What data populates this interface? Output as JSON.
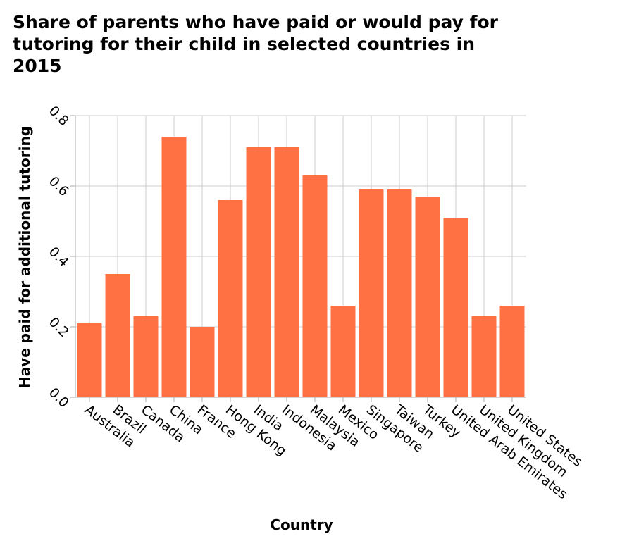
{
  "chart_data": {
    "type": "bar",
    "title": "Share of parents who have paid or would pay for tutoring for their child in selected countries in 2015",
    "xlabel": "Country",
    "ylabel": "Have paid for additional tutoring",
    "ylim": [
      0,
      0.8
    ],
    "yticks": [
      "0.0",
      "0.2",
      "0.4",
      "0.6",
      "0.8"
    ],
    "grid": true,
    "legend": "none",
    "bar_color": "#ff7043",
    "categories": [
      "Australia",
      "Brazil",
      "Canada",
      "China",
      "France",
      "Hong Kong",
      "India",
      "Indonesia",
      "Malaysia",
      "Mexico",
      "Singapore",
      "Taiwan",
      "Turkey",
      "United Arab Emirates",
      "United Kingdom",
      "United States"
    ],
    "values": [
      0.21,
      0.35,
      0.23,
      0.74,
      0.2,
      0.56,
      0.71,
      0.71,
      0.63,
      0.26,
      0.59,
      0.59,
      0.57,
      0.51,
      0.23,
      0.26
    ]
  }
}
